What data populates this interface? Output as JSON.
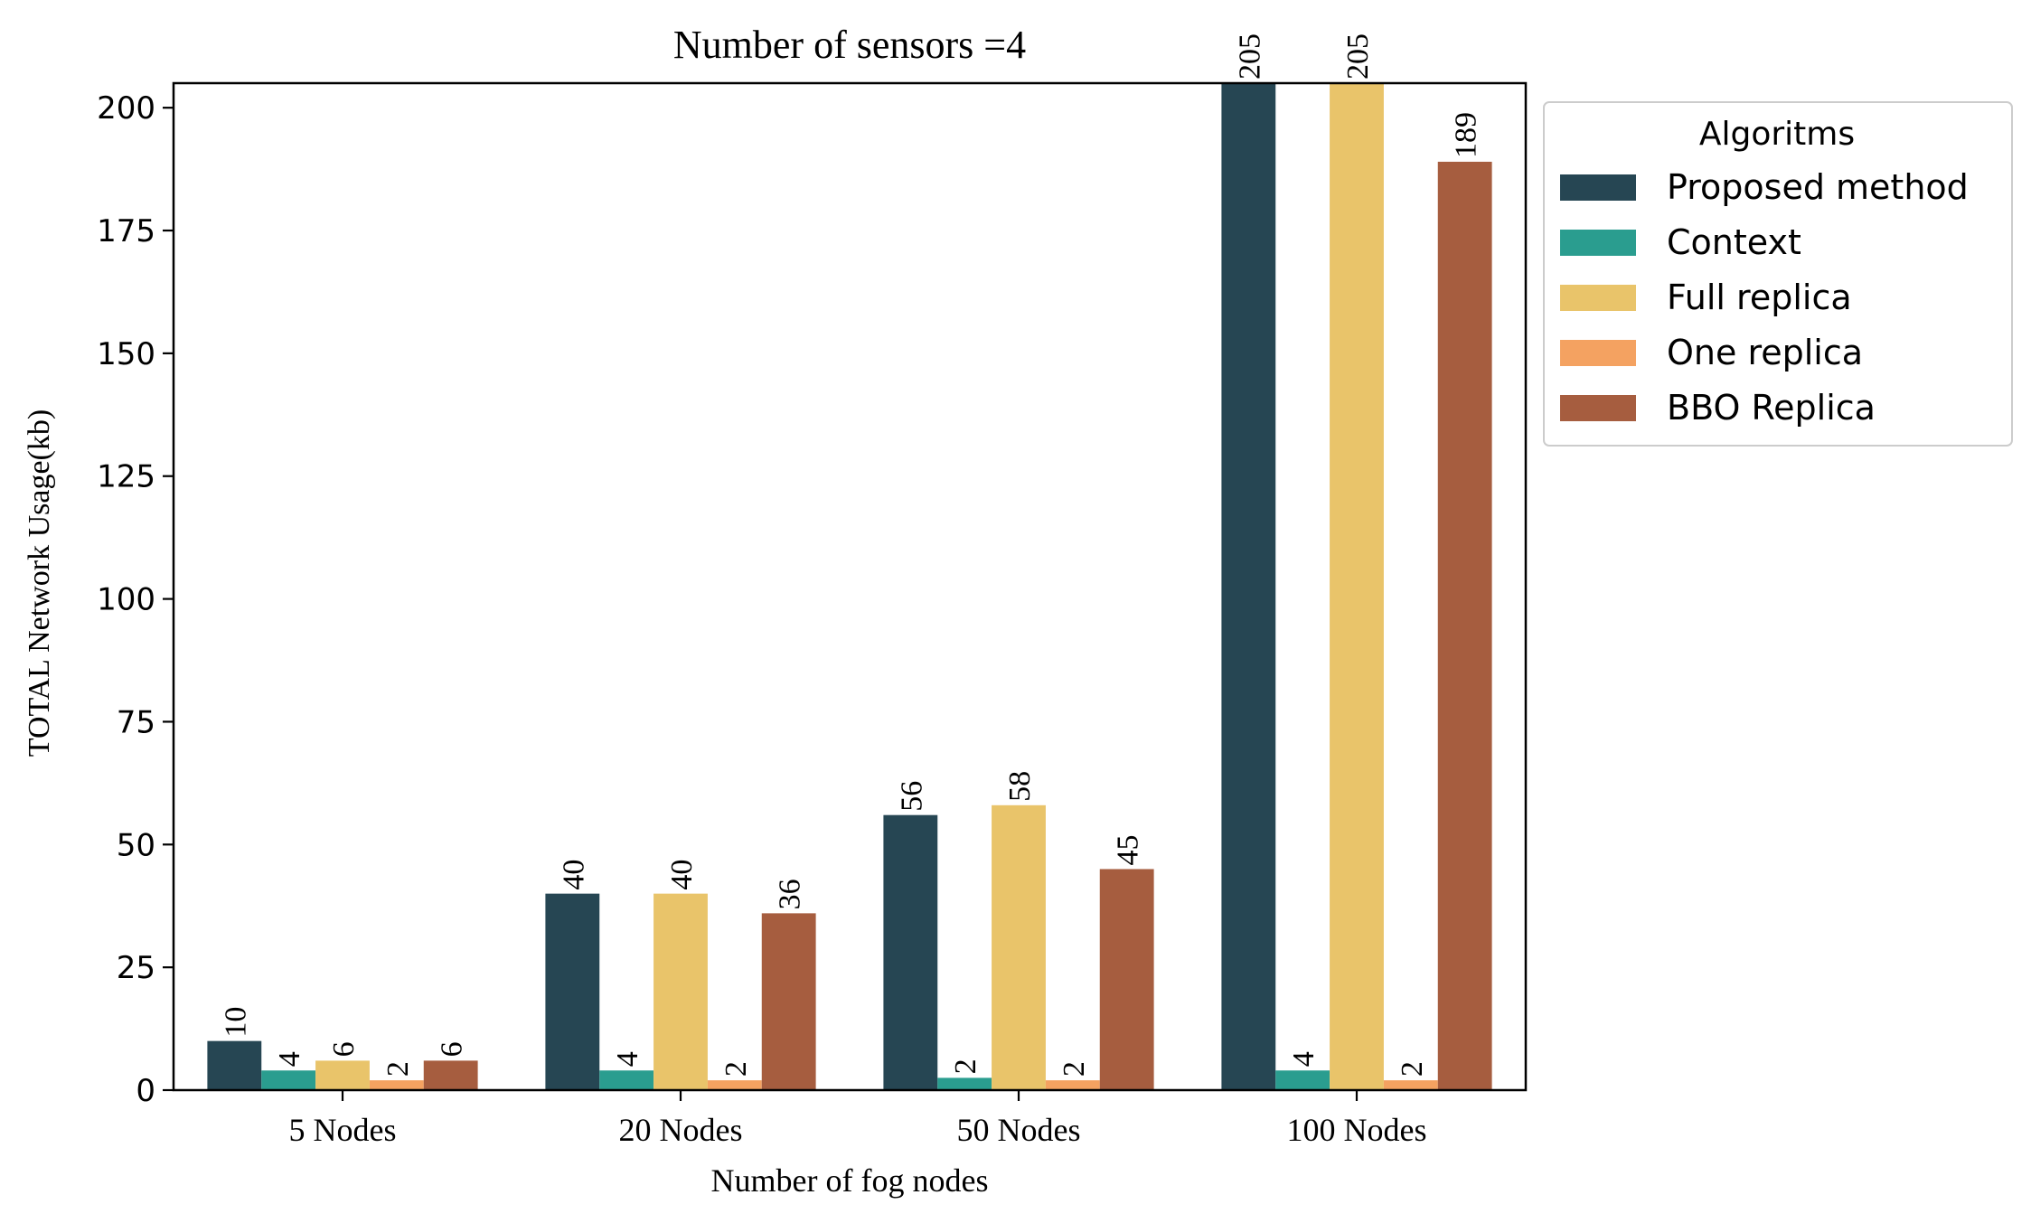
{
  "chart_data": {
    "type": "bar",
    "title": "Number of sensors =4",
    "xlabel": "Number of fog nodes",
    "ylabel": "TOTAL Network Usage(kb)",
    "categories": [
      "5 Nodes",
      "20 Nodes",
      "50 Nodes",
      "100 Nodes"
    ],
    "ylim": [
      0,
      205
    ],
    "yticks": [
      0,
      25,
      50,
      75,
      100,
      125,
      150,
      175,
      200
    ],
    "grid": false,
    "legend": {
      "title": "Algoritms",
      "placement": "outside-top-right"
    },
    "series": [
      {
        "name": "Proposed method",
        "color": "#264653",
        "values": [
          10,
          40,
          56,
          205
        ],
        "labels": [
          "10",
          "40",
          "56",
          "205"
        ]
      },
      {
        "name": "Context",
        "color": "#2a9d8f",
        "values": [
          4,
          4,
          2.5,
          4
        ],
        "labels": [
          "4",
          "4",
          "2",
          "4"
        ]
      },
      {
        "name": "Full replica",
        "color": "#e9c46a",
        "values": [
          6,
          40,
          58,
          205
        ],
        "labels": [
          "6",
          "40",
          "58",
          "205"
        ]
      },
      {
        "name": "One replica",
        "color": "#f4a261",
        "values": [
          2,
          2,
          2,
          2
        ],
        "labels": [
          "2",
          "2",
          "2",
          "2"
        ]
      },
      {
        "name": "BBO Replica",
        "color": "#a65d3f",
        "values": [
          6,
          36,
          45,
          189
        ],
        "labels": [
          "6",
          "36",
          "45",
          "189"
        ]
      }
    ]
  }
}
